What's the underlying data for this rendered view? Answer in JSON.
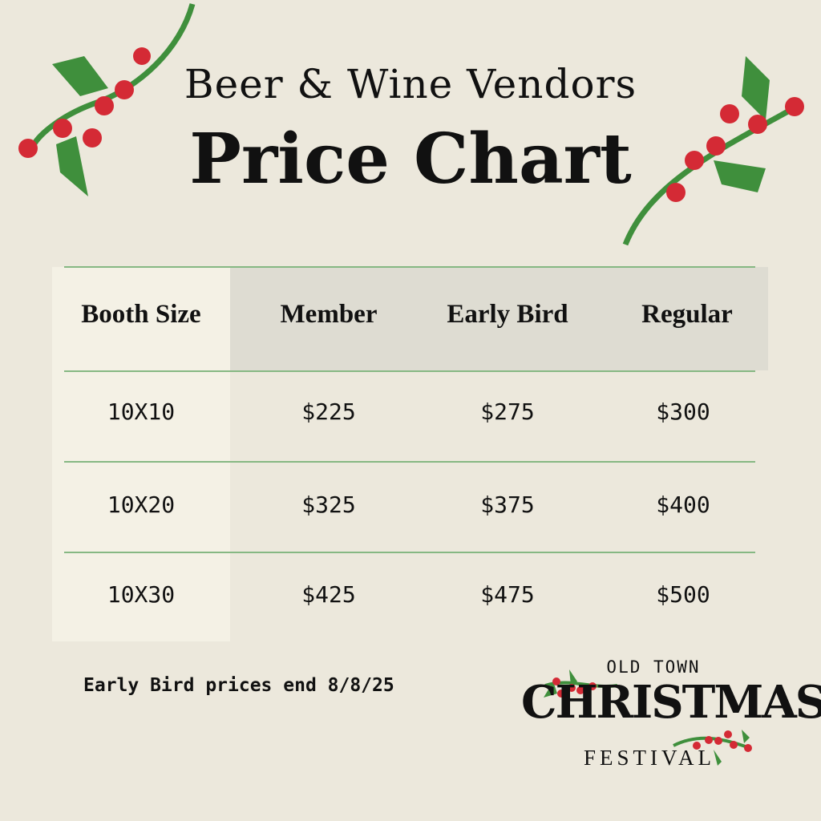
{
  "header": {
    "subtitle": "Beer & Wine Vendors",
    "title": "Price Chart"
  },
  "table": {
    "columns": [
      "Booth Size",
      "Member",
      "Early Bird",
      "Regular"
    ],
    "rows": [
      [
        "10X10",
        "$225",
        "$275",
        "$300"
      ],
      [
        "10X20",
        "$325",
        "$375",
        "$400"
      ],
      [
        "10X30",
        "$425",
        "$475",
        "$500"
      ]
    ]
  },
  "note": "Early Bird prices end 8/8/25",
  "logo": {
    "line1": "OLD TOWN",
    "line2": "CHRISTMAS",
    "line3": "FESTIVAL"
  },
  "colors": {
    "background": "#ece8dc",
    "holly_green": "#3f8f3c",
    "berry_red": "#d42a35",
    "rule_green": "#86b883"
  }
}
